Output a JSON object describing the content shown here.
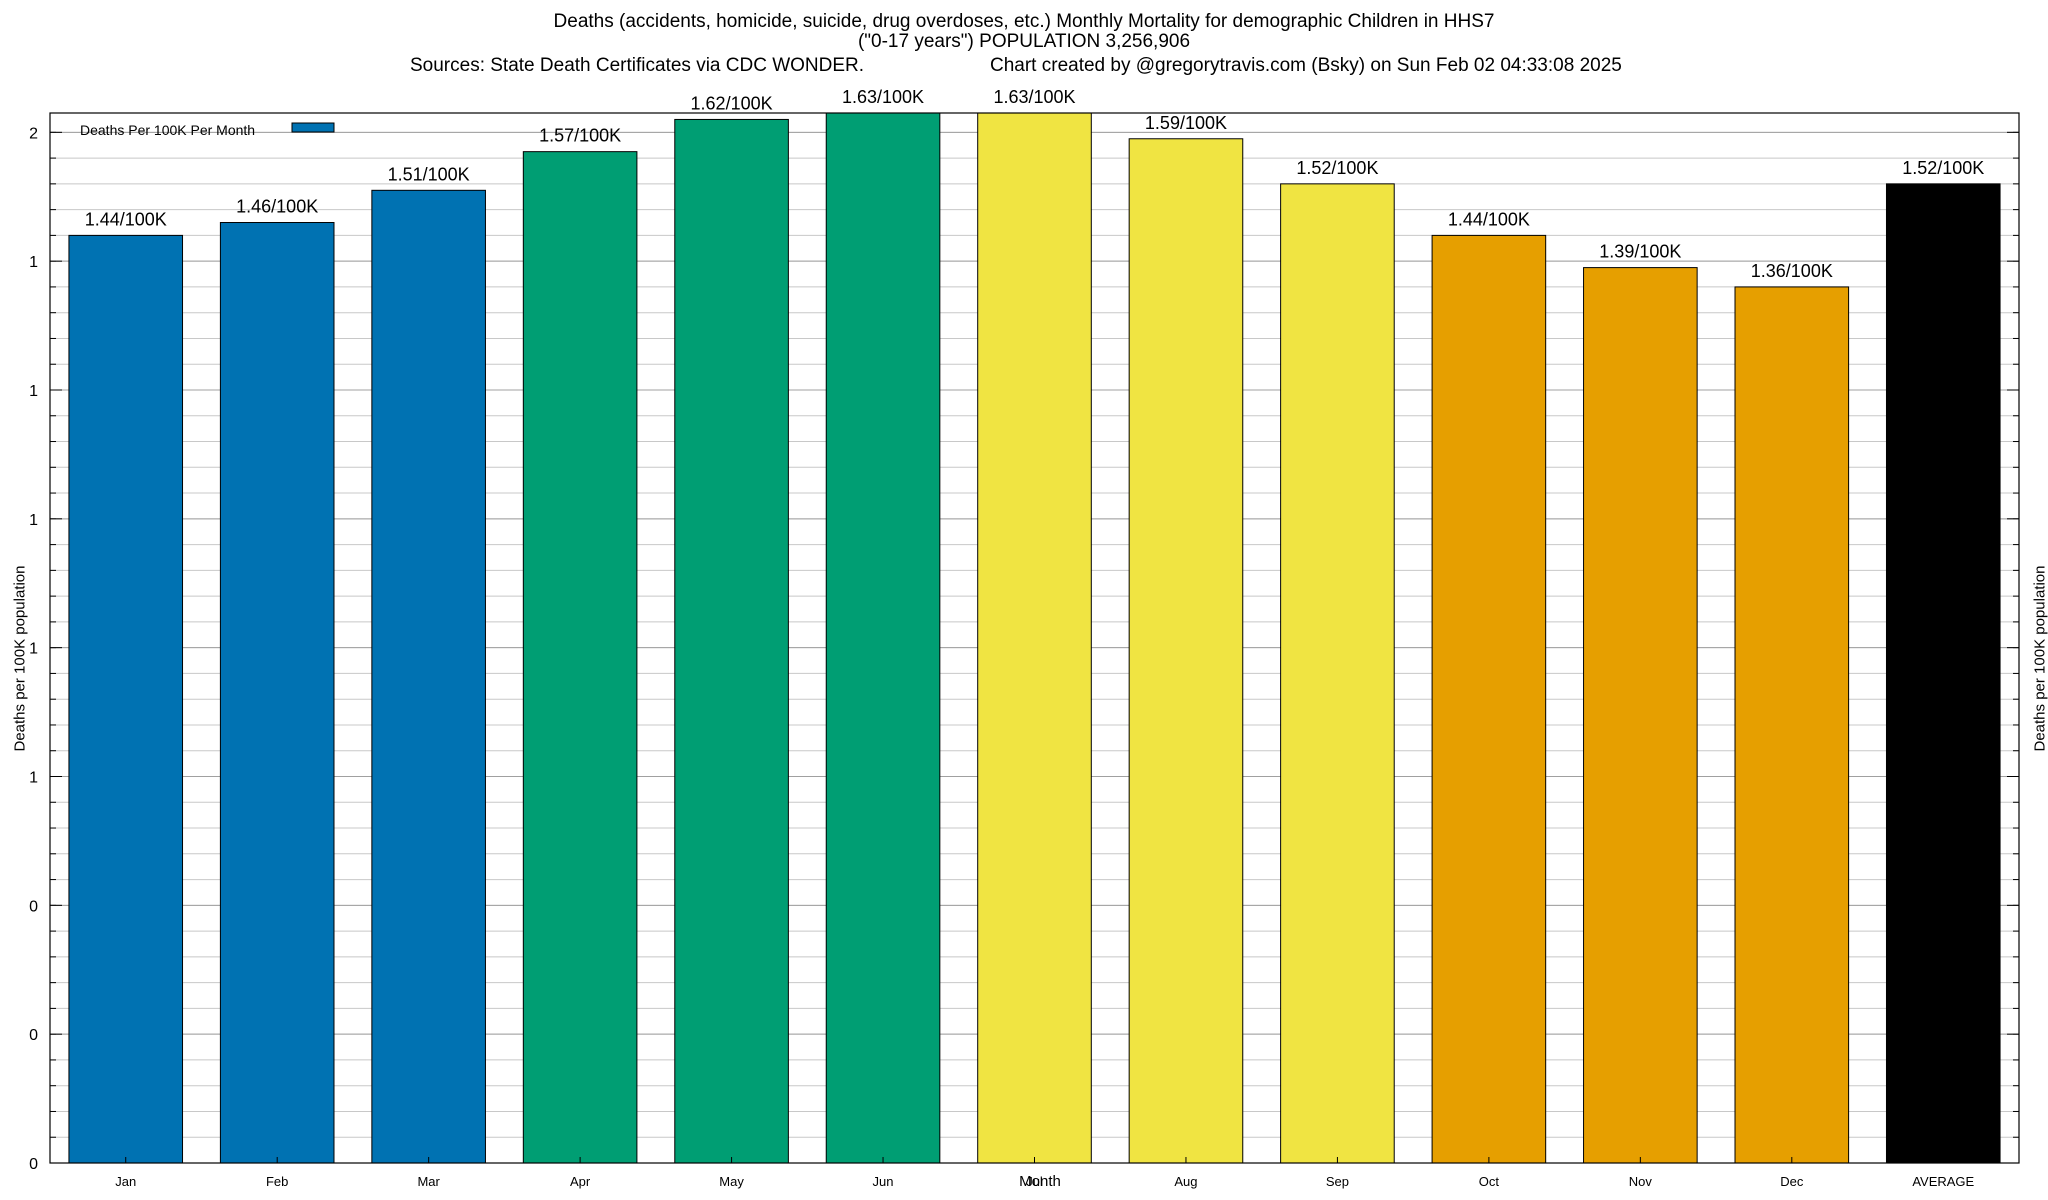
{
  "header": {
    "title_line1": "Deaths (accidents, homicide, suicide, drug overdoses, etc.) Monthly Mortality for demographic Children in HHS7",
    "title_line2": "(\"0-17 years\") POPULATION 3,256,906",
    "sources": "Sources: State Death Certificates via CDC WONDER.",
    "credit": "Chart created by @gregorytravis.com (Bsky) on Sun Feb 02 04:33:08 2025"
  },
  "chart_data": {
    "type": "bar",
    "title": "Deaths (accidents, homicide, suicide, drug overdoses, etc.) Monthly Mortality for demographic Children in HHS7",
    "xlabel": "Month",
    "ylabel": "Deaths per 100K population",
    "y2label": "Deaths per 100K population",
    "categories": [
      "Jan",
      "Feb",
      "Mar",
      "Apr",
      "May",
      "Jun",
      "Jul",
      "Aug",
      "Sep",
      "Oct",
      "Nov",
      "Dec",
      "AVERAGE"
    ],
    "values": [
      1.44,
      1.46,
      1.51,
      1.57,
      1.62,
      1.63,
      1.63,
      1.59,
      1.52,
      1.44,
      1.39,
      1.36,
      1.52
    ],
    "data_labels": [
      "1.44/100K",
      "1.46/100K",
      "1.51/100K",
      "1.57/100K",
      "1.62/100K",
      "1.63/100K",
      "1.63/100K",
      "1.59/100K",
      "1.52/100K",
      "1.44/100K",
      "1.39/100K",
      "1.36/100K",
      "1.52/100K"
    ],
    "bar_colors": [
      "#0072b2",
      "#0072b2",
      "#0072b2",
      "#009e73",
      "#009e73",
      "#009e73",
      "#f0e442",
      "#f0e442",
      "#f0e442",
      "#e69f00",
      "#e69f00",
      "#e69f00",
      "#000000"
    ],
    "ylim": [
      0,
      1.63
    ],
    "y_ticks": [
      0,
      0.2,
      0.4,
      0.6,
      0.8,
      1.0,
      1.2,
      1.4,
      1.6
    ],
    "y_tick_labels": [
      "0",
      "0",
      "0",
      "1",
      "1",
      "1",
      "1",
      "1",
      "2"
    ],
    "legend": {
      "entries": [
        {
          "name": "Deaths Per 100K Per Month",
          "color": "#0072b2"
        }
      ],
      "position": "top-left"
    },
    "grid": true
  }
}
